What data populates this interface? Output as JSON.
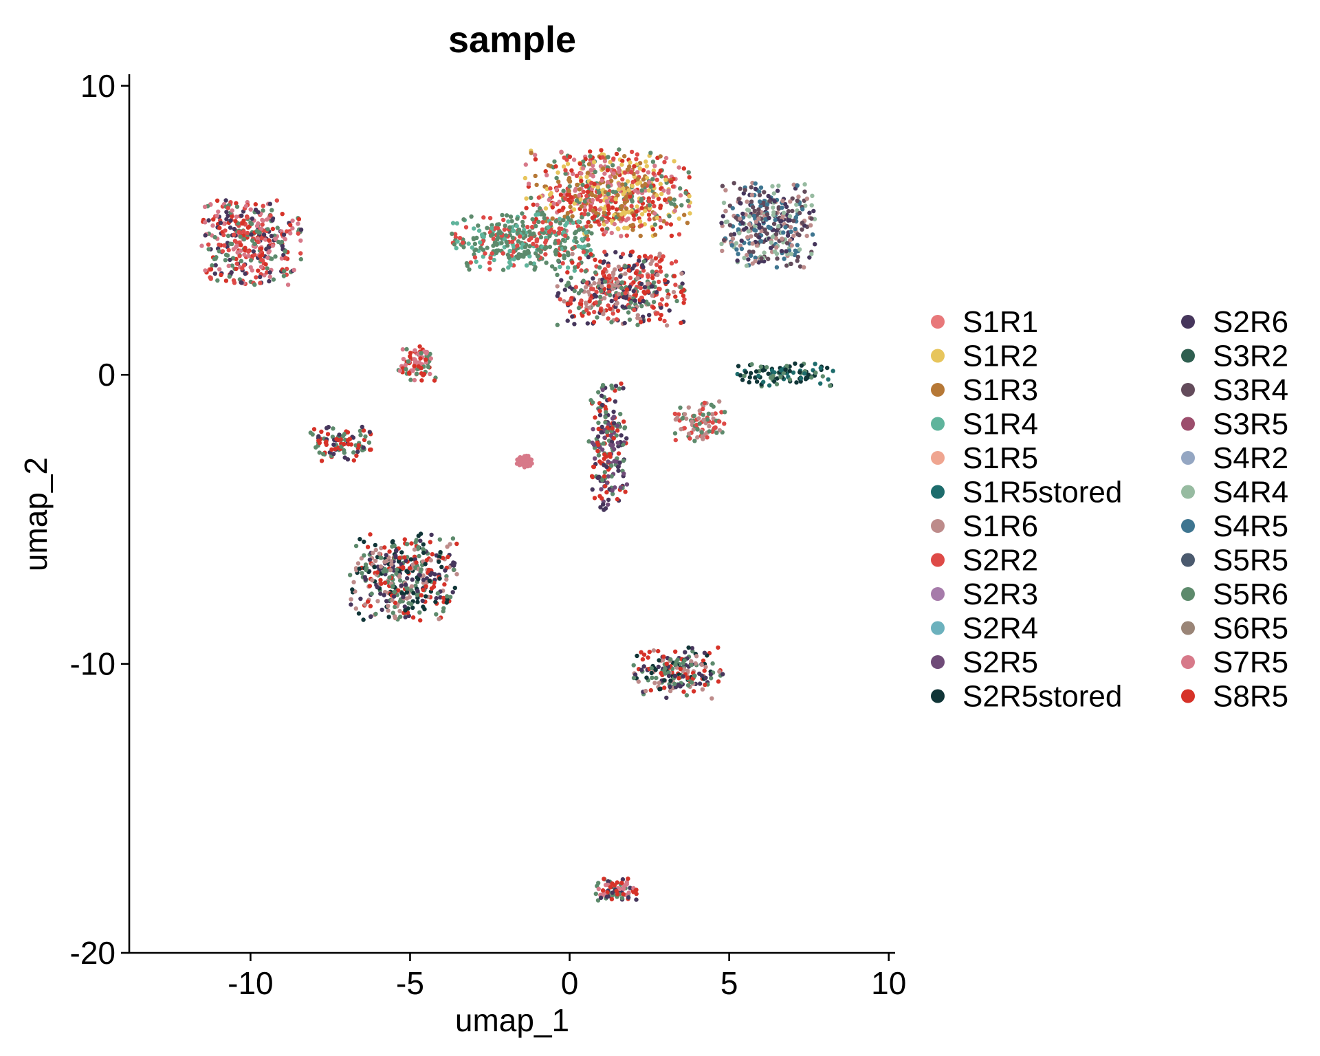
{
  "chart_data": {
    "type": "scatter",
    "title": "sample",
    "xlabel": "umap_1",
    "ylabel": "umap_2",
    "xlim": [
      -13.8,
      10.2
    ],
    "ylim": [
      -20,
      10.4
    ],
    "x_ticks": [
      -10,
      -5,
      0,
      5,
      10
    ],
    "y_ticks": [
      -20,
      -10,
      0,
      10
    ],
    "x_tick_labels": [
      "-10",
      "-5",
      "0",
      "5",
      "10"
    ],
    "y_tick_labels": [
      "-20",
      "-10",
      "0",
      "10"
    ],
    "grid": false,
    "legend_position": "right",
    "legend": [
      {
        "name": "S1R1",
        "color": "#E8787A"
      },
      {
        "name": "S1R2",
        "color": "#E7C55C"
      },
      {
        "name": "S1R3",
        "color": "#B67836"
      },
      {
        "name": "S1R4",
        "color": "#5FB49C"
      },
      {
        "name": "S1R5",
        "color": "#EFA590"
      },
      {
        "name": "S1R5stored",
        "color": "#1D6C6C"
      },
      {
        "name": "S1R6",
        "color": "#BD8B8A"
      },
      {
        "name": "S2R2",
        "color": "#DE4A47"
      },
      {
        "name": "S2R3",
        "color": "#A67BAA"
      },
      {
        "name": "S2R4",
        "color": "#6CB1BD"
      },
      {
        "name": "S2R5",
        "color": "#6F4B78"
      },
      {
        "name": "S2R5stored",
        "color": "#103537"
      },
      {
        "name": "S2R6",
        "color": "#46365C"
      },
      {
        "name": "S3R2",
        "color": "#2F5F50"
      },
      {
        "name": "S3R4",
        "color": "#634B5B"
      },
      {
        "name": "S3R5",
        "color": "#9C4E6D"
      },
      {
        "name": "S4R2",
        "color": "#94A6C2"
      },
      {
        "name": "S4R4",
        "color": "#97BBA1"
      },
      {
        "name": "S4R5",
        "color": "#3E7590"
      },
      {
        "name": "S5R5",
        "color": "#4B5A6E"
      },
      {
        "name": "S5R6",
        "color": "#5D8A6C"
      },
      {
        "name": "S6R5",
        "color": "#9A8577"
      },
      {
        "name": "S7R5",
        "color": "#D77989"
      },
      {
        "name": "S8R5",
        "color": "#D63228"
      }
    ],
    "clusters": [
      {
        "center": [
          1.2,
          6.3
        ],
        "spread": [
          2.6,
          1.5
        ],
        "series": [
          "S8R5",
          "S2R2",
          "S5R6",
          "S1R3",
          "S7R5",
          "S1R2"
        ]
      },
      {
        "center": [
          6.2,
          5.2
        ],
        "spread": [
          1.5,
          1.5
        ],
        "series": [
          "S2R6",
          "S4R4",
          "S1R6",
          "S3R4",
          "S4R5"
        ]
      },
      {
        "center": [
          -1.5,
          4.6
        ],
        "spread": [
          2.2,
          1.0
        ],
        "series": [
          "S5R6",
          "S5R6",
          "S2R2",
          "S1R4"
        ]
      },
      {
        "center": [
          1.6,
          3.0
        ],
        "spread": [
          2.0,
          1.3
        ],
        "series": [
          "S5R6",
          "S2R6",
          "S8R5",
          "S1R6",
          "S2R2"
        ]
      },
      {
        "center": [
          6.8,
          0.0
        ],
        "spread": [
          1.6,
          0.4
        ],
        "series": [
          "S2R5stored",
          "S2R5stored",
          "S1R5stored",
          "S5R6"
        ]
      },
      {
        "center": [
          1.2,
          -2.5
        ],
        "spread": [
          0.6,
          2.2
        ],
        "series": [
          "S2R6",
          "S8R5",
          "S5R6",
          "S2R5"
        ]
      },
      {
        "center": [
          4.1,
          -1.6
        ],
        "spread": [
          0.8,
          0.7
        ],
        "series": [
          "S5R6",
          "S1R6",
          "S2R2"
        ]
      },
      {
        "center": [
          -10.0,
          4.6
        ],
        "spread": [
          1.6,
          1.5
        ],
        "series": [
          "S5R6",
          "S2R6",
          "S7R5",
          "S2R2",
          "S8R5"
        ]
      },
      {
        "center": [
          -4.8,
          0.4
        ],
        "spread": [
          0.6,
          0.6
        ],
        "series": [
          "S5R6",
          "S7R5",
          "S8R5"
        ]
      },
      {
        "center": [
          -7.2,
          -2.4
        ],
        "spread": [
          1.0,
          0.6
        ],
        "series": [
          "S5R6",
          "S2R6",
          "S8R5"
        ]
      },
      {
        "center": [
          -1.4,
          -3.0
        ],
        "spread": [
          0.25,
          0.2
        ],
        "series": [
          "S7R5"
        ]
      },
      {
        "center": [
          -5.2,
          -7.0
        ],
        "spread": [
          1.7,
          1.5
        ],
        "series": [
          "S2R6",
          "S5R6",
          "S1R6",
          "S2R5stored",
          "S8R5"
        ]
      },
      {
        "center": [
          3.4,
          -10.3
        ],
        "spread": [
          1.4,
          0.9
        ],
        "series": [
          "S2R6",
          "S5R6",
          "S8R5",
          "S1R6",
          "S2R5stored"
        ]
      },
      {
        "center": [
          1.4,
          -17.8
        ],
        "spread": [
          0.7,
          0.4
        ],
        "series": [
          "S5R6",
          "S2R6",
          "S8R5",
          "S7R5"
        ]
      }
    ]
  }
}
